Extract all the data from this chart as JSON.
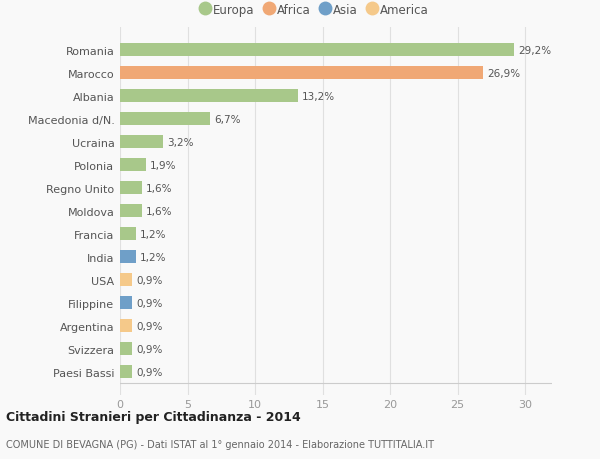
{
  "categories": [
    "Paesi Bassi",
    "Svizzera",
    "Argentina",
    "Filippine",
    "USA",
    "India",
    "Francia",
    "Moldova",
    "Regno Unito",
    "Polonia",
    "Ucraina",
    "Macedonia d/N.",
    "Albania",
    "Marocco",
    "Romania"
  ],
  "values": [
    0.9,
    0.9,
    0.9,
    0.9,
    0.9,
    1.2,
    1.2,
    1.6,
    1.6,
    1.9,
    3.2,
    6.7,
    13.2,
    26.9,
    29.2
  ],
  "colors": [
    "#a8c88a",
    "#a8c88a",
    "#f5c98a",
    "#6f9fc8",
    "#f5c98a",
    "#6f9fc8",
    "#a8c88a",
    "#a8c88a",
    "#a8c88a",
    "#a8c88a",
    "#a8c88a",
    "#a8c88a",
    "#a8c88a",
    "#f0a875",
    "#a8c88a"
  ],
  "labels": [
    "0,9%",
    "0,9%",
    "0,9%",
    "0,9%",
    "0,9%",
    "1,2%",
    "1,2%",
    "1,6%",
    "1,6%",
    "1,9%",
    "3,2%",
    "6,7%",
    "13,2%",
    "26,9%",
    "29,2%"
  ],
  "legend": [
    {
      "label": "Europa",
      "color": "#a8c88a"
    },
    {
      "label": "Africa",
      "color": "#f0a875"
    },
    {
      "label": "Asia",
      "color": "#6f9fc8"
    },
    {
      "label": "America",
      "color": "#f5c98a"
    }
  ],
  "xlim": [
    0,
    32
  ],
  "xticks": [
    0,
    5,
    10,
    15,
    20,
    25,
    30
  ],
  "title": "Cittadini Stranieri per Cittadinanza - 2014",
  "subtitle": "COMUNE DI BEVAGNA (PG) - Dati ISTAT al 1° gennaio 2014 - Elaborazione TUTTITALIA.IT",
  "background_color": "#f9f9f9",
  "grid_color": "#e0e0e0",
  "bar_height": 0.55
}
